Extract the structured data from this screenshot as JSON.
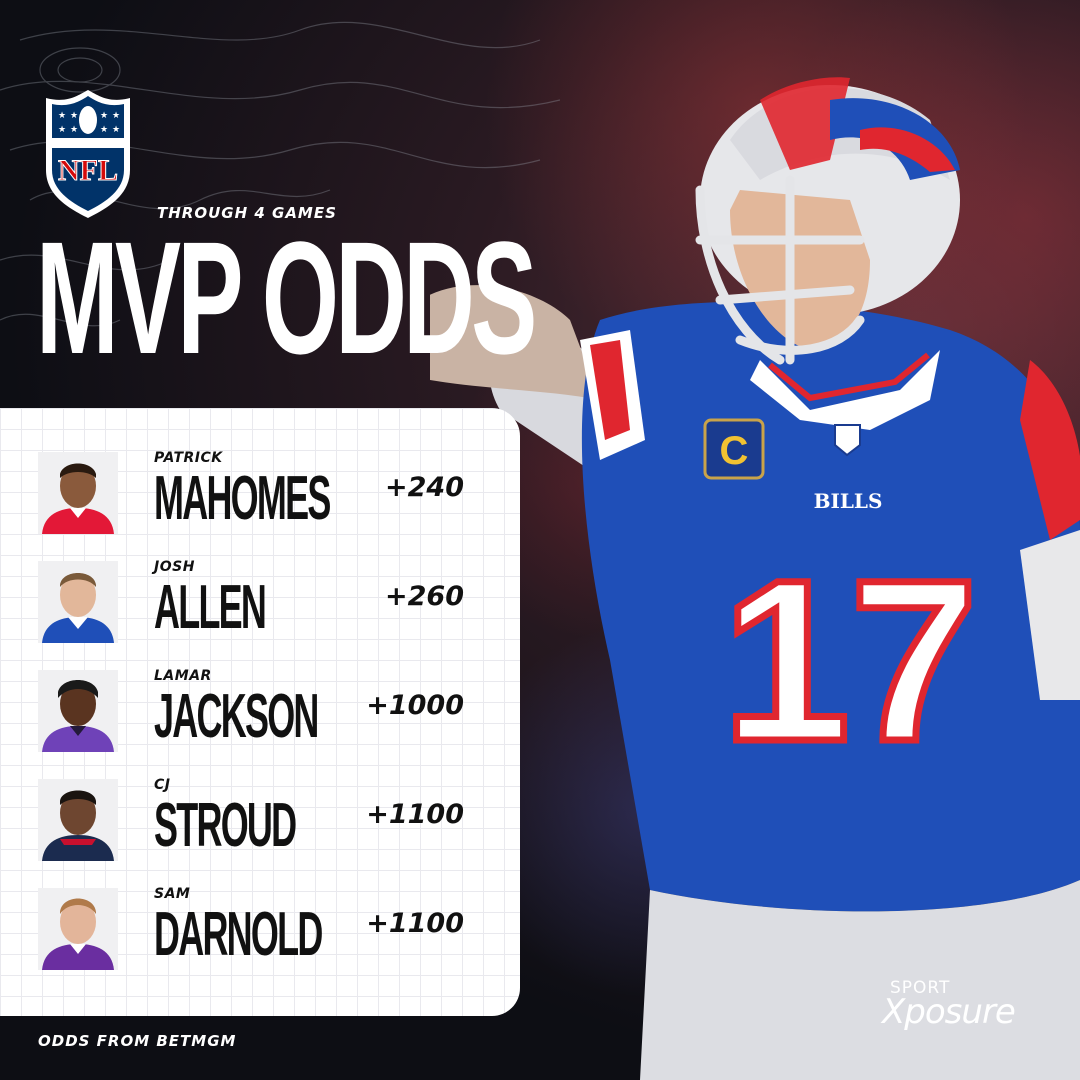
{
  "header": {
    "subtitle": "THROUGH 4 GAMES",
    "title": "MVP ODDS",
    "league_logo_text": "NFL"
  },
  "players": [
    {
      "first": "PATRICK",
      "last": "MAHOMES",
      "odds": "+240",
      "jersey": "#e31837",
      "skin": "#8a5a3c"
    },
    {
      "first": "JOSH",
      "last": "ALLEN",
      "odds": "+260",
      "jersey": "#1f4fb8",
      "skin": "#e2b79a"
    },
    {
      "first": "LAMAR",
      "last": "JACKSON",
      "odds": "+1000",
      "jersey": "#6f42b8",
      "skin": "#5a3420"
    },
    {
      "first": "CJ",
      "last": "STROUD",
      "odds": "+1100",
      "jersey": "#1b2b4f",
      "skin": "#6e4630"
    },
    {
      "first": "SAM",
      "last": "DARNOLD",
      "odds": "+1100",
      "jersey": "#6a2ea0",
      "skin": "#e3b59a"
    }
  ],
  "featured_player": {
    "number": "17",
    "team_wordmark": "BILLS",
    "captain_badge": "C"
  },
  "footer": {
    "source": "ODDS FROM BETMGM",
    "brand_top": "SPORT",
    "brand_bottom": "Xposure"
  },
  "colors": {
    "bills_blue": "#1f4fb8",
    "bills_red": "#e0262f",
    "panel_bg": "#ffffff",
    "text_dark": "#111111"
  }
}
